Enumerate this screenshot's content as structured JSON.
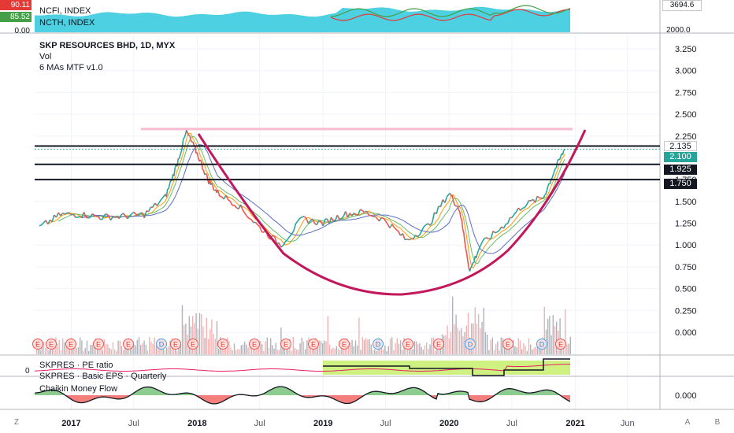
{
  "header": {
    "title": "SKP RESOURCES BHD, 1D, MYX",
    "indicators": [
      "Vol",
      "6 MAs MTF v1.0"
    ]
  },
  "top_pane": {
    "symbols": [
      {
        "name": "NCFI, INDEX",
        "value": "90.11",
        "color": "#e53935"
      },
      {
        "name": "NCTH, INDEX",
        "value": "85.52",
        "color": "#43a047"
      }
    ],
    "baseline": "0.00",
    "axis_labels": [
      "3694.6",
      "2000.0"
    ]
  },
  "price_axis": {
    "ticks": [
      "3.250",
      "3.000",
      "2.750",
      "2.500",
      "2.250",
      "2.000",
      "1.750",
      "1.500",
      "1.250",
      "1.000",
      "0.750",
      "0.500",
      "0.250",
      "0.000"
    ]
  },
  "price_tags": {
    "line1": "2.135",
    "last": "2.100",
    "line2": "1.925",
    "line3": "1.750"
  },
  "sub_panes": {
    "pe_label": "SKPRES · PE ratio",
    "eps_label": "SKPRES · Basic EPS · Quarterly",
    "pe_left": "0",
    "cmf_label": "Chaikin Money Flow",
    "cmf_axis": "0.000"
  },
  "time_axis": {
    "labels": [
      "2017",
      "Jul",
      "2018",
      "Jul",
      "2019",
      "Jul",
      "2020",
      "Jul",
      "2021",
      "Jun"
    ]
  },
  "axis_buttons": {
    "z": "Z",
    "a": "A",
    "b": "B"
  },
  "chart_data": {
    "type": "line",
    "title": "SKP RESOURCES BHD, 1D, MYX",
    "x": [
      "2016-10",
      "2016-12",
      "2017-02",
      "2017-04",
      "2017-06",
      "2017-08",
      "2017-10",
      "2017-11",
      "2017-12",
      "2018-01",
      "2018-02",
      "2018-03",
      "2018-05",
      "2018-07",
      "2018-09",
      "2018-11",
      "2019-01",
      "2019-03",
      "2019-05",
      "2019-07",
      "2019-09",
      "2019-11",
      "2020-01",
      "2020-02",
      "2020-03",
      "2020-04",
      "2020-06",
      "2020-08",
      "2020-10",
      "2020-11",
      "2020-12"
    ],
    "series": [
      {
        "name": "",
        "values": [
          1.2,
          1.35,
          1.35,
          1.32,
          1.33,
          1.35,
          1.55,
          1.9,
          2.3,
          2.05,
          1.75,
          1.6,
          1.45,
          1.2,
          1.0,
          1.3,
          1.25,
          1.35,
          1.38,
          1.28,
          1.05,
          1.22,
          1.6,
          1.4,
          0.7,
          1.0,
          1.2,
          1.45,
          1.55,
          1.85,
          2.1
        ]
      }
    ],
    "horizontal_levels": [
      2.135,
      1.925,
      1.75
    ],
    "resistance_level": 2.33,
    "ylim": [
      0.0,
      3.35
    ],
    "grid": true,
    "legend": "top-left"
  }
}
